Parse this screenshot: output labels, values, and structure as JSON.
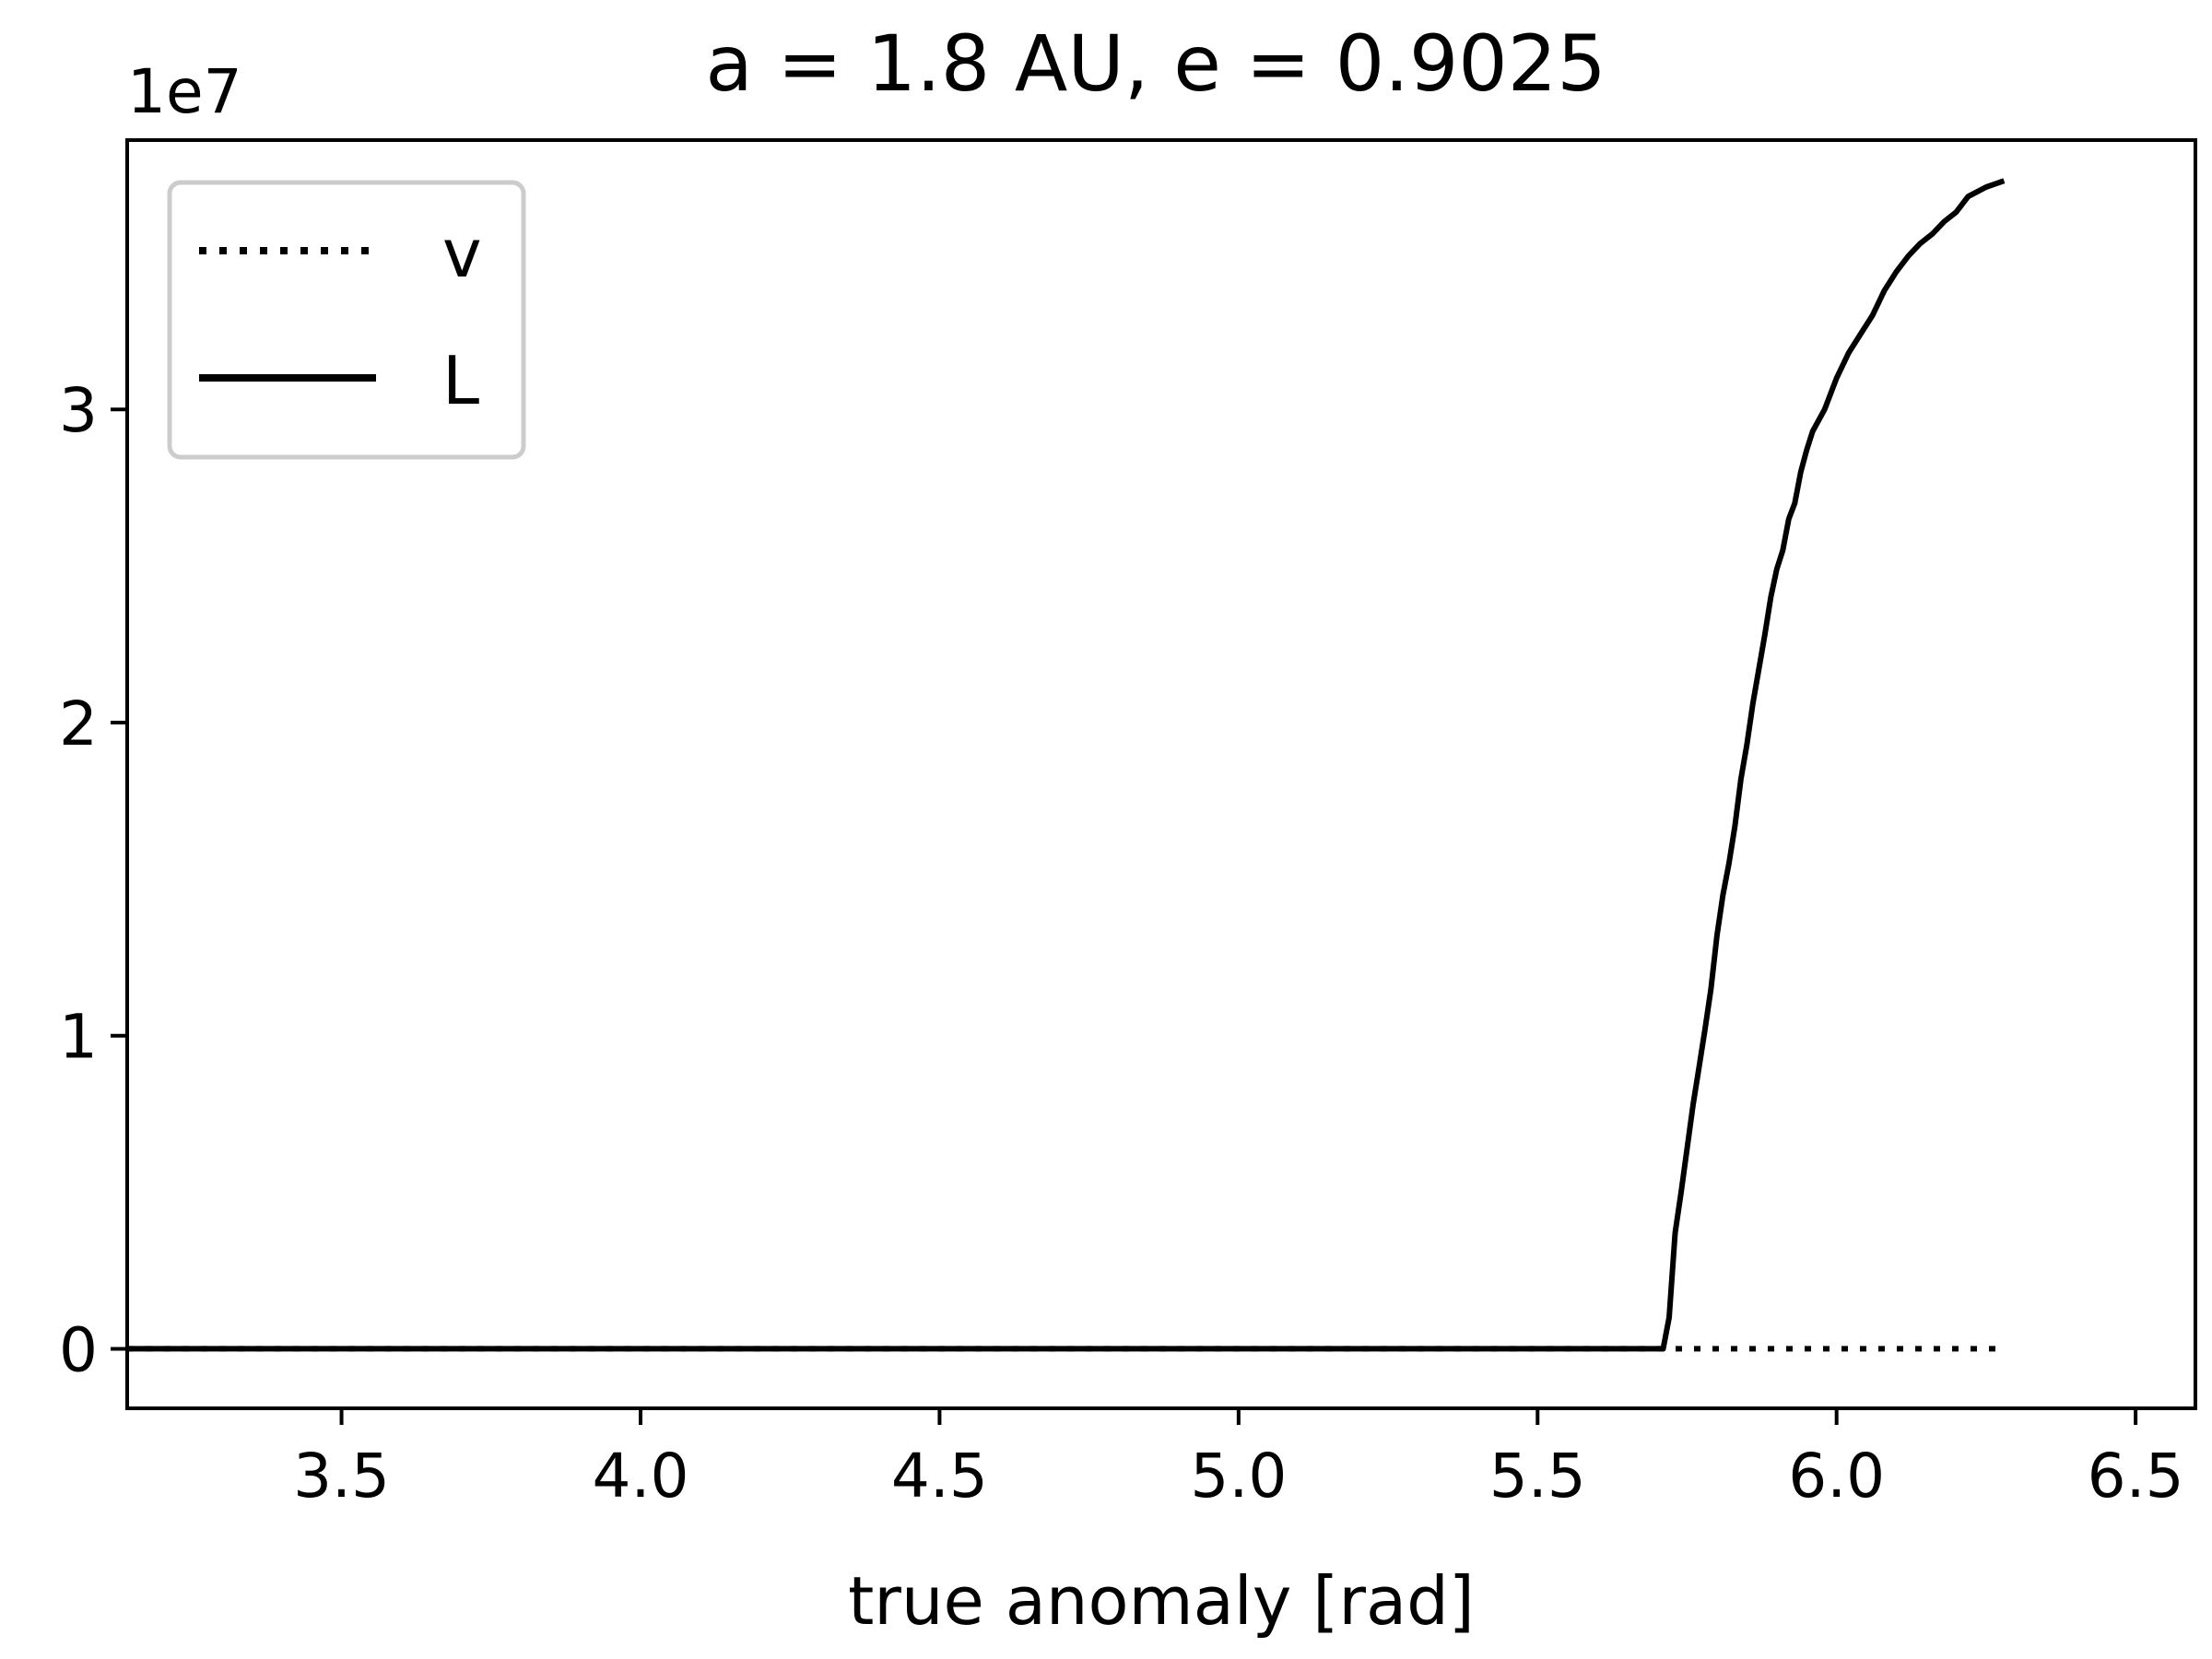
{
  "chart_data": {
    "type": "line",
    "title": "a = 1.8 AU, e = 0.9025",
    "xlabel": "true anomaly [rad]",
    "ylabel": "",
    "offset_label": "1e7",
    "xlim": [
      3.14159,
      6.6
    ],
    "ylim": [
      -0.19,
      3.86
    ],
    "x_ticks": [
      3.5,
      4.0,
      4.5,
      5.0,
      5.5,
      6.0,
      6.5
    ],
    "x_tick_labels": [
      "3.5",
      "4.0",
      "4.5",
      "5.0",
      "5.5",
      "6.0",
      "6.5"
    ],
    "y_ticks": [
      0,
      1,
      2,
      3
    ],
    "y_tick_labels": [
      "0",
      "1",
      "2",
      "3"
    ],
    "grid": false,
    "legend_position": "top-left",
    "series": [
      {
        "name": "v",
        "style": "dotted",
        "color": "#000000",
        "x": [
          3.14159,
          3.5,
          4.0,
          4.5,
          5.0,
          5.5,
          5.72,
          6.0,
          6.28
        ],
        "y": [
          0,
          0,
          0,
          0,
          0,
          0,
          0,
          0,
          0
        ]
      },
      {
        "name": "L",
        "style": "solid",
        "color": "#000000",
        "x": [
          3.14159,
          3.5,
          4.0,
          4.5,
          5.0,
          5.5,
          5.71,
          5.72,
          5.73,
          5.74,
          5.75,
          5.76,
          5.77,
          5.78,
          5.79,
          5.8,
          5.81,
          5.82,
          5.83,
          5.84,
          5.85,
          5.86,
          5.87,
          5.88,
          5.89,
          5.9,
          5.91,
          5.92,
          5.93,
          5.94,
          5.95,
          5.96,
          5.98,
          6.0,
          6.02,
          6.04,
          6.06,
          6.08,
          6.1,
          6.12,
          6.14,
          6.16,
          6.18,
          6.2,
          6.22,
          6.25,
          6.28
        ],
        "y": [
          0,
          0,
          0,
          0,
          0,
          0,
          0.0,
          0.1,
          0.37,
          0.5,
          0.64,
          0.78,
          0.9,
          1.02,
          1.15,
          1.32,
          1.45,
          1.55,
          1.67,
          1.82,
          1.93,
          2.06,
          2.17,
          2.28,
          2.4,
          2.49,
          2.55,
          2.65,
          2.7,
          2.8,
          2.87,
          2.93,
          3.0,
          3.1,
          3.18,
          3.24,
          3.3,
          3.38,
          3.44,
          3.49,
          3.53,
          3.56,
          3.6,
          3.63,
          3.68,
          3.71,
          3.73
        ]
      }
    ]
  }
}
